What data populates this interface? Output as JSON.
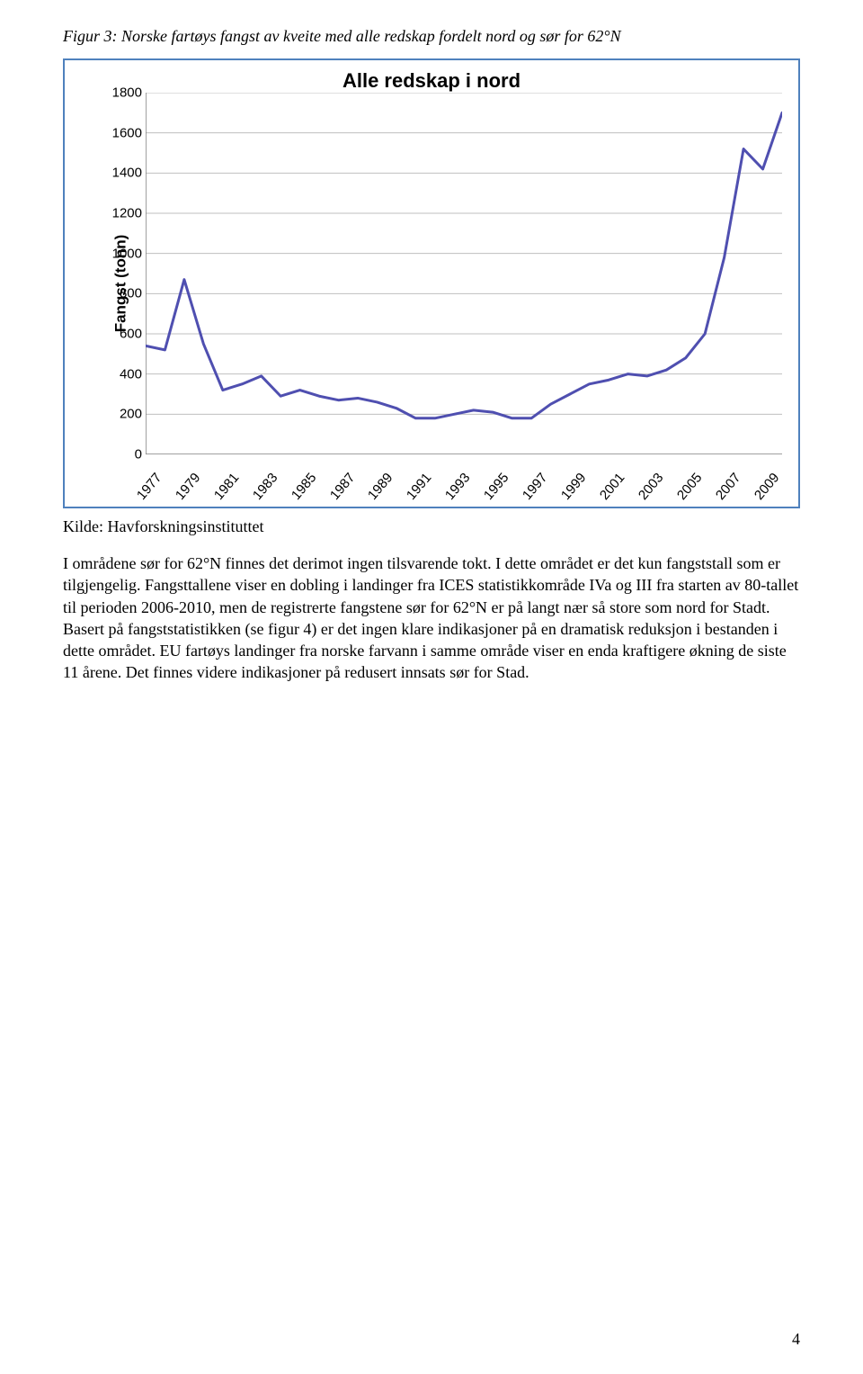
{
  "caption": "Figur 3: Norske fartøys fangst av kveite med alle redskap fordelt nord og sør for 62°N",
  "chart": {
    "type": "line",
    "title": "Alle redskap i nord",
    "title_fontsize": 22,
    "title_color": "#000000",
    "frame_border_color": "#4f81bd",
    "background_color": "#ffffff",
    "y_axis_label": "Fangst (tonn)",
    "label_fontsize": 17,
    "tick_fontsize": 15,
    "tick_color": "#000000",
    "ylim": [
      0,
      1800
    ],
    "ytick_step": 200,
    "yticks": [
      0,
      200,
      400,
      600,
      800,
      1000,
      1200,
      1400,
      1600,
      1800
    ],
    "xlim": [
      1977,
      2010
    ],
    "xticks": [
      1977,
      1979,
      1981,
      1983,
      1985,
      1987,
      1989,
      1991,
      1993,
      1995,
      1997,
      1999,
      2001,
      2003,
      2005,
      2007,
      2009
    ],
    "grid_color": "#bfbfbf",
    "grid_width": 1,
    "axis_line_color": "#808080",
    "line_color": "#4f4fb0",
    "line_width": 3,
    "years": [
      1977,
      1978,
      1979,
      1980,
      1981,
      1982,
      1983,
      1984,
      1985,
      1986,
      1987,
      1988,
      1989,
      1990,
      1991,
      1992,
      1993,
      1994,
      1995,
      1996,
      1997,
      1998,
      1999,
      2000,
      2001,
      2002,
      2003,
      2004,
      2005,
      2006,
      2007,
      2008,
      2009,
      2010
    ],
    "values": [
      540,
      520,
      870,
      550,
      320,
      350,
      390,
      290,
      320,
      290,
      270,
      280,
      260,
      230,
      180,
      180,
      200,
      220,
      210,
      180,
      180,
      250,
      300,
      350,
      370,
      400,
      390,
      420,
      480,
      600,
      980,
      1520,
      1420,
      1700
    ]
  },
  "source_prefix": "Kilde: ",
  "source_name": "Havforskningsinstituttet",
  "body_paragraph": "I områdene sør for 62°N finnes det derimot ingen tilsvarende tokt. I dette området er det kun fangststall som er tilgjengelig. Fangsttallene viser en dobling i landinger fra ICES statistikkområde IVa og III fra starten av 80-tallet til perioden 2006-2010, men de registrerte fangstene sør for 62°N er på langt nær så store som nord for Stadt. Basert på fangststatistikken (se figur 4) er det ingen klare indikasjoner på en dramatisk reduksjon i bestanden i dette området. EU fartøys landinger fra norske farvann i samme område viser en enda kraftigere økning de siste 11 årene. Det finnes videre indikasjoner på redusert innsats sør for Stad.",
  "page_number": "4"
}
